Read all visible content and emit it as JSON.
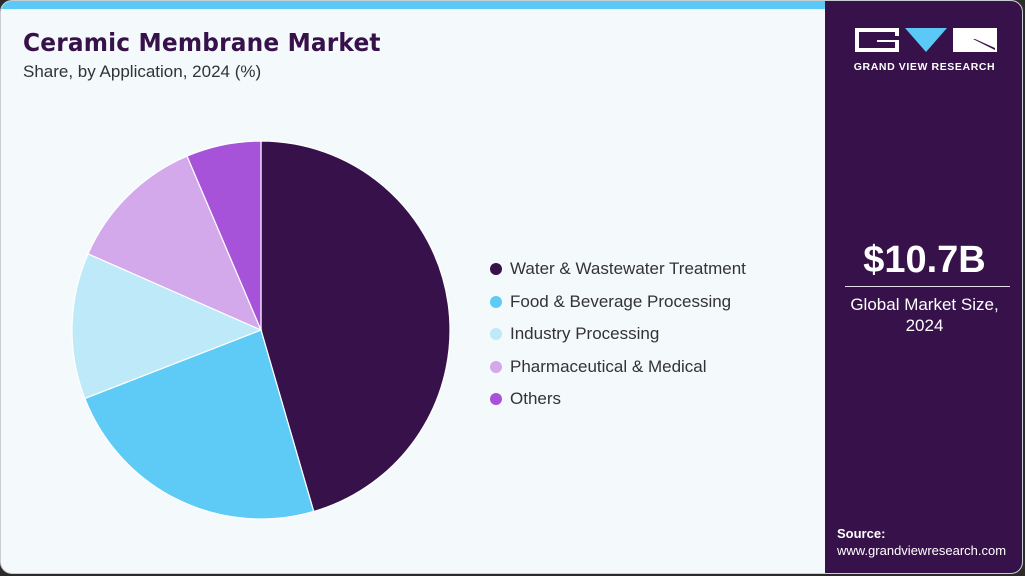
{
  "header": {
    "title": "Ceramic Membrane Market",
    "subtitle": "Share, by Application, 2024 (%)"
  },
  "sidebar": {
    "brand": "GRAND VIEW RESEARCH",
    "market_value": "$10.7B",
    "market_label_line1": "Global Market Size,",
    "market_label_line2": "2024",
    "source_title": "Source:",
    "source_url": "www.grandviewresearch.com"
  },
  "colors": {
    "accent_bar": "#5bc9f5",
    "sidebar_bg": "#37114a",
    "card_bg": "#f4f9fc"
  },
  "legend": [
    {
      "label": "Water & Wastewater Treatment",
      "color": "#37114a"
    },
    {
      "label": "Food & Beverage Processing",
      "color": "#5ecbf6"
    },
    {
      "label": "Industry Processing",
      "color": "#bee9f9"
    },
    {
      "label": "Pharmaceutical & Medical",
      "color": "#d3a9ec"
    },
    {
      "label": "Others",
      "color": "#a653d9"
    }
  ],
  "chart_data": {
    "type": "pie",
    "title": "Ceramic Membrane Market",
    "subtitle": "Share, by Application, 2024 (%)",
    "categories": [
      "Water & Wastewater Treatment",
      "Food & Beverage Processing",
      "Industry Processing",
      "Pharmaceutical & Medical",
      "Others"
    ],
    "values": [
      45.5,
      23.6,
      12.5,
      12.0,
      6.4
    ],
    "colors": [
      "#37114a",
      "#5ecbf6",
      "#bee9f9",
      "#d3a9ec",
      "#a653d9"
    ],
    "start_angle_deg": 0,
    "direction": "clockwise",
    "legend_position": "right",
    "unit": "%"
  }
}
